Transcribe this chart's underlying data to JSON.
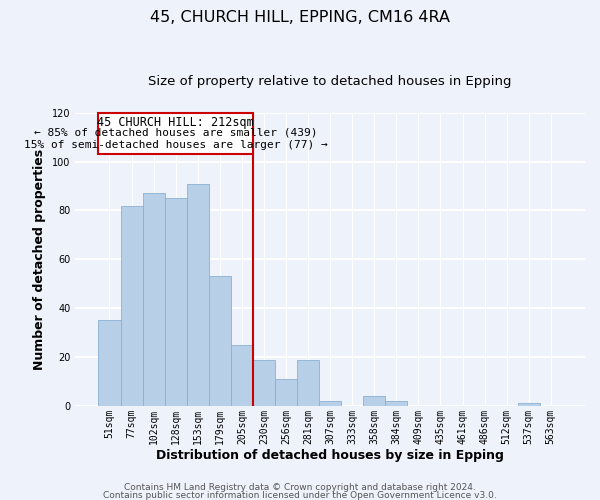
{
  "title": "45, CHURCH HILL, EPPING, CM16 4RA",
  "subtitle": "Size of property relative to detached houses in Epping",
  "xlabel": "Distribution of detached houses by size in Epping",
  "ylabel": "Number of detached properties",
  "categories": [
    "51sqm",
    "77sqm",
    "102sqm",
    "128sqm",
    "153sqm",
    "179sqm",
    "205sqm",
    "230sqm",
    "256sqm",
    "281sqm",
    "307sqm",
    "333sqm",
    "358sqm",
    "384sqm",
    "409sqm",
    "435sqm",
    "461sqm",
    "486sqm",
    "512sqm",
    "537sqm",
    "563sqm"
  ],
  "values": [
    35,
    82,
    87,
    85,
    91,
    53,
    25,
    19,
    11,
    19,
    2,
    0,
    4,
    2,
    0,
    0,
    0,
    0,
    0,
    1,
    0
  ],
  "bar_color": "#b8cfe8",
  "redline_index": 6.5,
  "annotation_title": "45 CHURCH HILL: 212sqm",
  "annotation_line1": "← 85% of detached houses are smaller (439)",
  "annotation_line2": "15% of semi-detached houses are larger (77) →",
  "ylim": [
    0,
    120
  ],
  "yticks": [
    0,
    20,
    40,
    60,
    80,
    100,
    120
  ],
  "footer_line1": "Contains HM Land Registry data © Crown copyright and database right 2024.",
  "footer_line2": "Contains public sector information licensed under the Open Government Licence v3.0.",
  "background_color": "#eef2fb",
  "grid_color": "#ffffff",
  "box_edge_color": "#cc0000",
  "title_fontsize": 11.5,
  "subtitle_fontsize": 9.5,
  "axis_label_fontsize": 9,
  "tick_fontsize": 7,
  "annotation_fontsize": 8.5,
  "footer_fontsize": 6.5
}
